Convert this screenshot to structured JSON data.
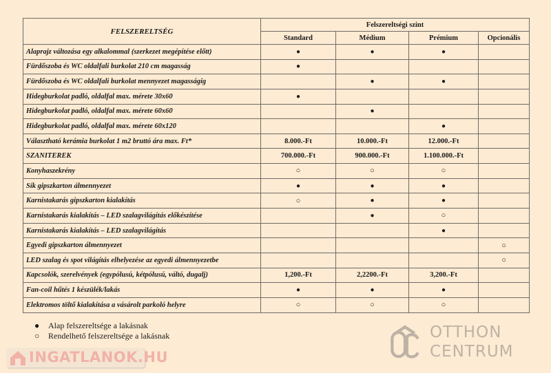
{
  "header": {
    "feature_col": "FELSZERELTSÉG",
    "group": "Felszereltségi szint",
    "levels": [
      "Standard",
      "Médium",
      "Prémium",
      "Opcionális"
    ]
  },
  "rows": [
    {
      "label": "Alaprajz változása egy alkalommal (szerkezet megépítése előtt)",
      "cells": [
        "●",
        "●",
        "●",
        ""
      ]
    },
    {
      "label": "Fürdőszoba és WC oldalfali burkolat 210 cm magasság",
      "cells": [
        "●",
        "",
        "",
        ""
      ]
    },
    {
      "label": "Fürdőszoba és WC oldalfali burkolat mennyezet magasságig",
      "cells": [
        "",
        "●",
        "●",
        ""
      ]
    },
    {
      "label": "Hidegburkolat  padló, oldalfal max. mérete 30x60",
      "cells": [
        "●",
        "",
        "",
        ""
      ]
    },
    {
      "label": "Hidegburkolat  padló, oldalfal  max. mérete 60x60",
      "cells": [
        "",
        "●",
        "",
        ""
      ]
    },
    {
      "label": "Hidegburkolat  padló, oldalfal max. mérete 60x120",
      "cells": [
        "",
        "",
        "●",
        ""
      ]
    },
    {
      "label": "Választható kerámia burkolat 1 m2 bruttó ára max. Ft*",
      "cells": [
        "8.000.-Ft",
        "10.000.-Ft",
        "12.000.-Ft",
        ""
      ]
    },
    {
      "label": "SZANITEREK",
      "cells": [
        "700.000.-Ft",
        "900.000.-Ft",
        "1.100.000.-Ft",
        ""
      ]
    },
    {
      "label": "Konyhaszekrény",
      "cells": [
        "○",
        "○",
        "○",
        ""
      ]
    },
    {
      "label": "Sík gipszkarton álmennyezet",
      "cells": [
        "●",
        "●",
        "●",
        ""
      ]
    },
    {
      "label": "Karnistakarás gipszkarton kialakítás",
      "cells": [
        "○",
        "●",
        "●",
        ""
      ]
    },
    {
      "label": "Karnistakarás kialakítás – LED szalagvilágítás előkészítése",
      "cells": [
        "",
        "●",
        "○",
        ""
      ]
    },
    {
      "label": "Karnistakarás kialakítás – LED szalagvilágítás",
      "cells": [
        "",
        "",
        "●",
        ""
      ]
    },
    {
      "label": "Egyedi gipszkarton álmennyezet",
      "cells": [
        "",
        "",
        "",
        "○"
      ]
    },
    {
      "label": "LED szalag és spot világítás elhelyezése az egyedi álmennyezetbe",
      "cells": [
        "",
        "",
        "",
        "○"
      ]
    },
    {
      "label": "Kapcsolók, szerelvények (egypólusú, kétpólusú, váltó, dugalj)",
      "cells": [
        "1,200.-Ft",
        "2,2200.-Ft",
        "3,200.-Ft",
        ""
      ]
    },
    {
      "label": "Fan-coil hűtés 1 készülék/lakás",
      "cells": [
        "●",
        "●",
        "●",
        ""
      ]
    },
    {
      "label": "Elektromos töltő kialakítása a vásárolt parkoló helyre",
      "cells": [
        "○",
        "○",
        "○",
        ""
      ]
    }
  ],
  "legend": [
    {
      "symbol": "●",
      "text": "Alap felszereltsége a lakásnak"
    },
    {
      "symbol": "○",
      "text": "Rendelhető felszereltsége a lakásnak"
    }
  ],
  "watermark": {
    "line1": "OTTHON",
    "line2": "CENTRUM"
  },
  "badge": {
    "text": "INGATLANOK.HU"
  },
  "colors": {
    "background": "#fdebd3",
    "grid": "#6e6a66",
    "watermark": "#8a8580",
    "badge": "#f0a9a0"
  }
}
